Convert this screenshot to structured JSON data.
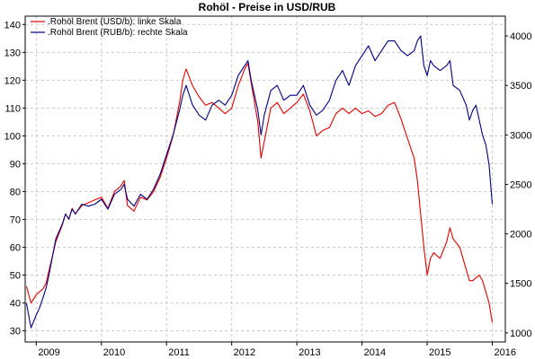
{
  "chart_data": {
    "type": "line",
    "title": "Rohöl - Preise in USD/RUB",
    "x_ticks": [
      "2009",
      "2010",
      "2011",
      "2012",
      "2013",
      "2014",
      "2015",
      "2016"
    ],
    "x_range": [
      2008.83,
      2016.2
    ],
    "left_axis": {
      "ticks": [
        30,
        40,
        50,
        60,
        70,
        80,
        90,
        100,
        110,
        120,
        130,
        140
      ],
      "ylim": [
        26,
        143
      ]
    },
    "right_axis": {
      "ticks": [
        1000,
        1500,
        2000,
        2500,
        3000,
        3500,
        4000
      ],
      "ylim": [
        908,
        4200
      ]
    },
    "grid": true,
    "legend_position": "top-left",
    "series": [
      {
        "name": ".Rohöl Brent (USD/b): linke Skala",
        "axis": "left",
        "color": "#e00000",
        "x": [
          2008.85,
          2008.92,
          2009.0,
          2009.05,
          2009.1,
          2009.15,
          2009.2,
          2009.3,
          2009.4,
          2009.45,
          2009.5,
          2009.55,
          2009.6,
          2009.7,
          2009.8,
          2009.9,
          2010.0,
          2010.1,
          2010.2,
          2010.3,
          2010.35,
          2010.4,
          2010.5,
          2010.6,
          2010.7,
          2010.8,
          2010.9,
          2011.0,
          2011.1,
          2011.2,
          2011.25,
          2011.3,
          2011.4,
          2011.5,
          2011.6,
          2011.7,
          2011.8,
          2011.9,
          2012.0,
          2012.1,
          2012.2,
          2012.25,
          2012.3,
          2012.4,
          2012.45,
          2012.5,
          2012.6,
          2012.7,
          2012.8,
          2012.9,
          2013.0,
          2013.1,
          2013.2,
          2013.3,
          2013.4,
          2013.5,
          2013.6,
          2013.7,
          2013.8,
          2013.9,
          2014.0,
          2014.1,
          2014.2,
          2014.3,
          2014.4,
          2014.5,
          2014.6,
          2014.7,
          2014.8,
          2014.85,
          2014.9,
          2014.95,
          2015.0,
          2015.05,
          2015.1,
          2015.2,
          2015.3,
          2015.35,
          2015.4,
          2015.5,
          2015.6,
          2015.65,
          2015.7,
          2015.75,
          2015.8,
          2015.85,
          2015.9,
          2015.95,
          2016.0
        ],
        "values": [
          46,
          40,
          43,
          44,
          45,
          47,
          52,
          62,
          68,
          72,
          70,
          74,
          72,
          75,
          76,
          77,
          78,
          74,
          80,
          82,
          84,
          75,
          73,
          78,
          77,
          80,
          85,
          92,
          100,
          112,
          120,
          124,
          118,
          114,
          111,
          112,
          110,
          108,
          110,
          118,
          124,
          126,
          119,
          105,
          92,
          98,
          110,
          112,
          108,
          110,
          112,
          115,
          109,
          100,
          102,
          103,
          108,
          110,
          108,
          110,
          108,
          109,
          107,
          108,
          111,
          112,
          106,
          99,
          92,
          84,
          72,
          60,
          50,
          56,
          58,
          56,
          62,
          67,
          63,
          60,
          52,
          48,
          48,
          49,
          50,
          48,
          44,
          40,
          33
        ]
      },
      {
        "name": ".Rohöl Brent (RUB/b): rechte Skala",
        "axis": "right",
        "color": "#000080",
        "x": [
          2008.85,
          2008.92,
          2009.0,
          2009.05,
          2009.1,
          2009.15,
          2009.2,
          2009.3,
          2009.4,
          2009.45,
          2009.5,
          2009.55,
          2009.6,
          2009.7,
          2009.8,
          2009.9,
          2010.0,
          2010.1,
          2010.2,
          2010.3,
          2010.35,
          2010.4,
          2010.5,
          2010.6,
          2010.7,
          2010.8,
          2010.9,
          2011.0,
          2011.1,
          2011.2,
          2011.25,
          2011.3,
          2011.4,
          2011.5,
          2011.6,
          2011.7,
          2011.8,
          2011.9,
          2012.0,
          2012.1,
          2012.2,
          2012.25,
          2012.3,
          2012.4,
          2012.45,
          2012.5,
          2012.6,
          2012.7,
          2012.8,
          2012.9,
          2013.0,
          2013.1,
          2013.2,
          2013.3,
          2013.4,
          2013.5,
          2013.6,
          2013.7,
          2013.8,
          2013.9,
          2014.0,
          2014.1,
          2014.2,
          2014.3,
          2014.4,
          2014.5,
          2014.6,
          2014.7,
          2014.8,
          2014.85,
          2014.9,
          2014.95,
          2015.0,
          2015.05,
          2015.1,
          2015.2,
          2015.3,
          2015.35,
          2015.4,
          2015.5,
          2015.6,
          2015.65,
          2015.7,
          2015.75,
          2015.8,
          2015.85,
          2015.9,
          2015.95,
          2016.0
        ],
        "values": [
          1300,
          1050,
          1180,
          1250,
          1350,
          1450,
          1600,
          1950,
          2100,
          2200,
          2150,
          2250,
          2200,
          2300,
          2280,
          2300,
          2350,
          2250,
          2400,
          2450,
          2500,
          2350,
          2280,
          2400,
          2350,
          2450,
          2600,
          2800,
          3000,
          3250,
          3400,
          3500,
          3300,
          3200,
          3150,
          3300,
          3350,
          3300,
          3400,
          3600,
          3700,
          3750,
          3550,
          3250,
          3000,
          3200,
          3450,
          3500,
          3350,
          3400,
          3400,
          3500,
          3300,
          3200,
          3250,
          3350,
          3550,
          3650,
          3500,
          3700,
          3800,
          3900,
          3750,
          3850,
          3950,
          3950,
          3850,
          3800,
          3850,
          3950,
          4000,
          3700,
          3600,
          3750,
          3700,
          3650,
          3700,
          3750,
          3500,
          3450,
          3300,
          3150,
          3250,
          3300,
          3150,
          3000,
          2900,
          2700,
          2300
        ]
      }
    ]
  }
}
